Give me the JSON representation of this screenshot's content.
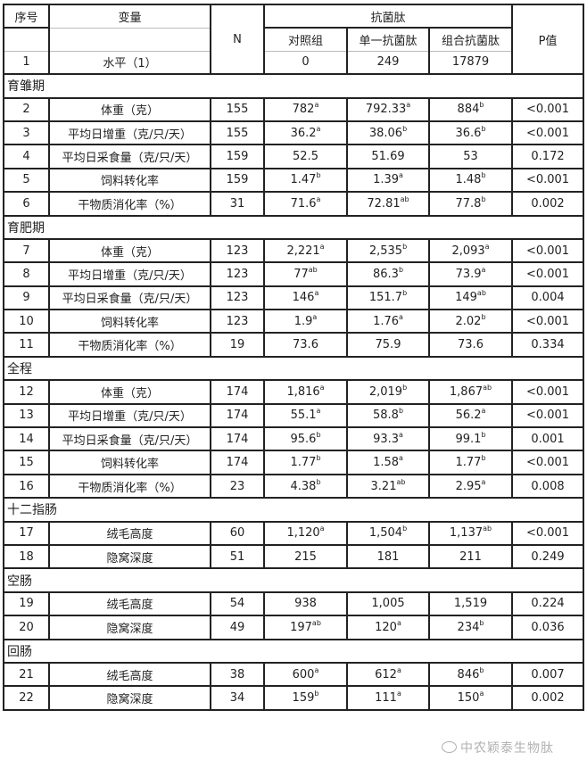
{
  "header": {
    "seq": "序号",
    "variable": "变量",
    "n": "N",
    "group": "抗菌肽",
    "control": "对照组",
    "single": "单一抗菌肽",
    "combo": "组合抗菌肽",
    "p": "P值",
    "level_seq": "1",
    "level_label": "水平（1）",
    "level_control": "0",
    "level_single": "249",
    "level_combo": "17879"
  },
  "rows": [
    {
      "section": "育雏期"
    },
    {
      "seq": "2",
      "var": "体重（克）",
      "n": "155",
      "c": {
        "v": "782",
        "s": "a"
      },
      "s1": {
        "v": "792.33",
        "s": "a"
      },
      "s2": {
        "v": "884",
        "s": "b"
      },
      "p": "<0.001"
    },
    {
      "seq": "3",
      "var": "平均日增重（克/只/天）",
      "n": "155",
      "c": {
        "v": "36.2",
        "s": "a"
      },
      "s1": {
        "v": "38.06",
        "s": "b"
      },
      "s2": {
        "v": "36.6",
        "s": "b"
      },
      "p": "<0.001"
    },
    {
      "seq": "4",
      "var": "平均日采食量（克/只/天）",
      "n": "159",
      "c": {
        "v": "52.5",
        "s": ""
      },
      "s1": {
        "v": "51.69",
        "s": ""
      },
      "s2": {
        "v": "53",
        "s": ""
      },
      "p": "0.172"
    },
    {
      "seq": "5",
      "var": "饲料转化率",
      "n": "159",
      "c": {
        "v": "1.47",
        "s": "b"
      },
      "s1": {
        "v": "1.39",
        "s": "a"
      },
      "s2": {
        "v": "1.48",
        "s": "b"
      },
      "p": "<0.001"
    },
    {
      "seq": "6",
      "var": "干物质消化率（%）",
      "n": "31",
      "c": {
        "v": "71.6",
        "s": "a"
      },
      "s1": {
        "v": "72.81",
        "s": "ab"
      },
      "s2": {
        "v": "77.8",
        "s": "b"
      },
      "p": "0.002"
    },
    {
      "section": "育肥期"
    },
    {
      "seq": "7",
      "var": "体重（克）",
      "n": "123",
      "c": {
        "v": "2,221",
        "s": "a"
      },
      "s1": {
        "v": "2,535",
        "s": "b"
      },
      "s2": {
        "v": "2,093",
        "s": "a"
      },
      "p": "<0.001"
    },
    {
      "seq": "8",
      "var": "平均日增重（克/只/天）",
      "n": "123",
      "c": {
        "v": "77",
        "s": "ab"
      },
      "s1": {
        "v": "86.3",
        "s": "b"
      },
      "s2": {
        "v": "73.9",
        "s": "a"
      },
      "p": "<0.001"
    },
    {
      "seq": "9",
      "var": "平均日采食量（克/只/天）",
      "n": "123",
      "c": {
        "v": "146",
        "s": "a"
      },
      "s1": {
        "v": "151.7",
        "s": "b"
      },
      "s2": {
        "v": "149",
        "s": "ab"
      },
      "p": "0.004"
    },
    {
      "seq": "10",
      "var": "饲料转化率",
      "n": "123",
      "c": {
        "v": "1.9",
        "s": "a"
      },
      "s1": {
        "v": "1.76",
        "s": "a"
      },
      "s2": {
        "v": "2.02",
        "s": "b"
      },
      "p": "<0.001"
    },
    {
      "seq": "11",
      "var": "干物质消化率（%）",
      "n": "19",
      "c": {
        "v": "73.6",
        "s": ""
      },
      "s1": {
        "v": "75.9",
        "s": ""
      },
      "s2": {
        "v": "73.6",
        "s": ""
      },
      "p": "0.334"
    },
    {
      "section": "全程"
    },
    {
      "seq": "12",
      "var": "体重（克）",
      "n": "174",
      "c": {
        "v": "1,816",
        "s": "a"
      },
      "s1": {
        "v": "2,019",
        "s": "b"
      },
      "s2": {
        "v": "1,867",
        "s": "ab"
      },
      "p": "<0.001"
    },
    {
      "seq": "13",
      "var": "平均日增重（克/只/天）",
      "n": "174",
      "c": {
        "v": "55.1",
        "s": "a"
      },
      "s1": {
        "v": "58.8",
        "s": "b"
      },
      "s2": {
        "v": "56.2",
        "s": "a"
      },
      "p": "<0.001"
    },
    {
      "seq": "14",
      "var": "平均日采食量（克/只/天）",
      "n": "174",
      "c": {
        "v": "95.6",
        "s": "b"
      },
      "s1": {
        "v": "93.3",
        "s": "a"
      },
      "s2": {
        "v": "99.1",
        "s": "b"
      },
      "p": "0.001"
    },
    {
      "seq": "15",
      "var": "饲料转化率",
      "n": "174",
      "c": {
        "v": "1.77",
        "s": "b"
      },
      "s1": {
        "v": "1.58",
        "s": "a"
      },
      "s2": {
        "v": "1.77",
        "s": "b"
      },
      "p": "<0.001"
    },
    {
      "seq": "16",
      "var": "干物质消化率（%）",
      "n": "23",
      "c": {
        "v": "4.38",
        "s": "b"
      },
      "s1": {
        "v": "3.21",
        "s": "ab"
      },
      "s2": {
        "v": "2.95",
        "s": "a"
      },
      "p": "0.008"
    },
    {
      "section": "十二指肠"
    },
    {
      "seq": "17",
      "var": "绒毛高度",
      "n": "60",
      "c": {
        "v": "1,120",
        "s": "a"
      },
      "s1": {
        "v": "1,504",
        "s": "b"
      },
      "s2": {
        "v": "1,137",
        "s": "ab"
      },
      "p": "<0.001"
    },
    {
      "seq": "18",
      "var": "隐窝深度",
      "n": "51",
      "c": {
        "v": "215",
        "s": ""
      },
      "s1": {
        "v": "181",
        "s": ""
      },
      "s2": {
        "v": "211",
        "s": ""
      },
      "p": "0.249"
    },
    {
      "section": "空肠"
    },
    {
      "seq": "19",
      "var": "绒毛高度",
      "n": "54",
      "c": {
        "v": "938",
        "s": ""
      },
      "s1": {
        "v": "1,005",
        "s": ""
      },
      "s2": {
        "v": "1,519",
        "s": ""
      },
      "p": "0.224"
    },
    {
      "seq": "20",
      "var": "隐窝深度",
      "n": "49",
      "c": {
        "v": "197",
        "s": "ab"
      },
      "s1": {
        "v": "120",
        "s": "a"
      },
      "s2": {
        "v": "234",
        "s": "b"
      },
      "p": "0.036"
    },
    {
      "section": "回肠"
    },
    {
      "seq": "21",
      "var": "绒毛高度",
      "n": "38",
      "c": {
        "v": "600",
        "s": "a"
      },
      "s1": {
        "v": "612",
        "s": "a"
      },
      "s2": {
        "v": "846",
        "s": "b"
      },
      "p": "0.007"
    },
    {
      "seq": "22",
      "var": "隐窝深度",
      "n": "34",
      "c": {
        "v": "159",
        "s": "b"
      },
      "s1": {
        "v": "111",
        "s": "a"
      },
      "s2": {
        "v": "150",
        "s": "a"
      },
      "p": "0.002"
    }
  ],
  "watermark": "中农颖泰生物肽"
}
